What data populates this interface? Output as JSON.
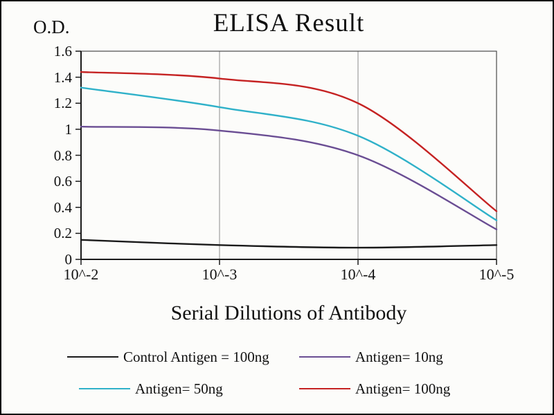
{
  "title": "ELISA Result",
  "y_axis_label": "O.D.",
  "x_axis_label": "Serial Dilutions of Antibody",
  "chart_data": {
    "type": "line",
    "title": "ELISA Result",
    "xlabel": "Serial Dilutions of Antibody",
    "ylabel": "O.D.",
    "x_tick_labels": [
      "10^-2",
      "10^-3",
      "10^-4",
      "10^-5"
    ],
    "x_dilutions": [
      0.01,
      0.001,
      0.0001,
      1e-05
    ],
    "y_tick_labels": [
      "0",
      "0.2",
      "0.4",
      "0.6",
      "0.8",
      "1",
      "1.2",
      "1.4",
      "1.6"
    ],
    "y_ticks": [
      0,
      0.2,
      0.4,
      0.6,
      0.8,
      1.0,
      1.2,
      1.4,
      1.6
    ],
    "ylim": [
      0,
      1.6
    ],
    "grid": "vertical",
    "legend_position": "bottom",
    "colors": {
      "axis": "#1a1a1a",
      "gridline": "#8c8c8c",
      "plot_border": "#4a4a4a"
    },
    "series": [
      {
        "name": "Control Antigen = 100ng",
        "color": "#1a1a1a",
        "values": [
          0.15,
          0.11,
          0.09,
          0.11
        ]
      },
      {
        "name": "Antigen= 10ng",
        "color": "#6a4d93",
        "values": [
          1.02,
          0.99,
          0.8,
          0.23
        ]
      },
      {
        "name": "Antigen= 50ng",
        "color": "#2fb1c9",
        "values": [
          1.32,
          1.17,
          0.95,
          0.3
        ]
      },
      {
        "name": "Antigen= 100ng",
        "color": "#c52222",
        "values": [
          1.44,
          1.39,
          1.2,
          0.37
        ]
      }
    ]
  }
}
